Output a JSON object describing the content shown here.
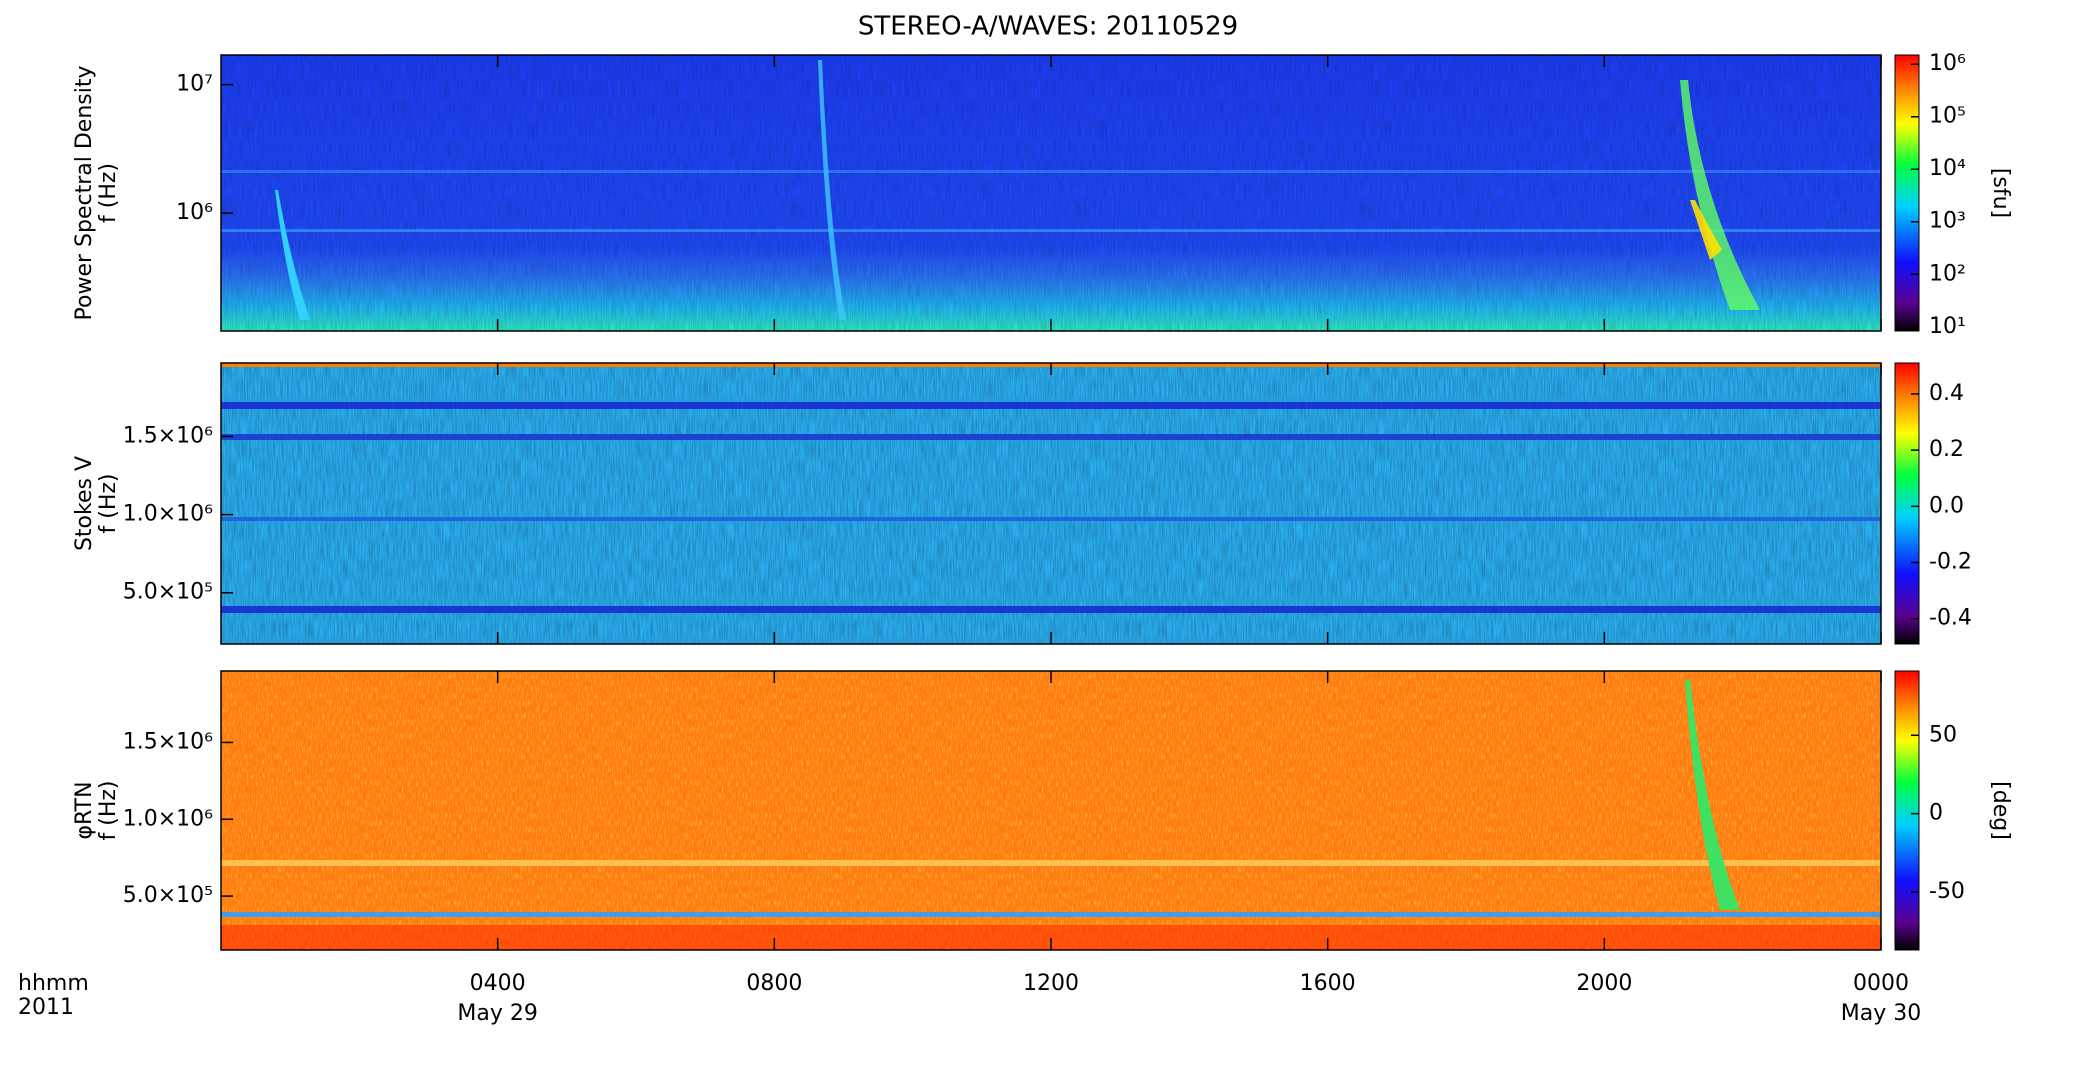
{
  "chart_data": [
    {
      "type": "heatmap",
      "title": "STEREO-A/WAVES: 20110529",
      "ylabel": [
        "Power Spectral Density",
        "f (Hz)"
      ],
      "ylog": true,
      "ylim": [
        121000,
        17000000
      ],
      "yticks": [
        {
          "value": 1000000,
          "label": "10⁶"
        },
        {
          "value": 10000000,
          "label": "10⁷"
        }
      ],
      "colorbar_log": true,
      "clim": [
        8.3,
        1500000
      ],
      "cticks": [
        {
          "value": 10,
          "label": "10¹"
        },
        {
          "value": 100,
          "label": "10²"
        },
        {
          "value": 1000,
          "label": "10³"
        },
        {
          "value": 10000,
          "label": "10⁴"
        },
        {
          "value": 100000,
          "label": "10⁵"
        },
        {
          "value": 1000000,
          "label": "10⁶"
        }
      ],
      "colorbar_label": "[sfu]"
    },
    {
      "type": "heatmap",
      "ylabel": [
        "Stokes V",
        "f (Hz)"
      ],
      "ylog": false,
      "ylim": [
        172000,
        1970000
      ],
      "yticks": [
        {
          "value": 500000,
          "label": "5.0×10⁵"
        },
        {
          "value": 1000000,
          "label": "1.0×10⁶"
        },
        {
          "value": 1500000,
          "label": "1.5×10⁶"
        }
      ],
      "colorbar_log": false,
      "clim": [
        -0.49,
        0.51
      ],
      "cticks": [
        {
          "value": -0.4,
          "label": "-0.4"
        },
        {
          "value": -0.2,
          "label": "-0.2"
        },
        {
          "value": 0,
          "label": "0.0"
        },
        0.2,
        0.4
      ]
    },
    {
      "type": "heatmap",
      "ylabel": [
        "φRTN",
        "f (Hz)"
      ],
      "ylog": false,
      "ylim": [
        149000,
        1965000
      ],
      "yticks": [
        {
          "value": 500000,
          "label": "5.0×10⁵"
        },
        {
          "value": 1000000,
          "label": "1.0×10⁶"
        },
        {
          "value": 1500000,
          "label": "1.5×10⁶"
        }
      ],
      "colorbar_log": false,
      "clim": [
        -87,
        91
      ],
      "cticks": [
        -50,
        0,
        50
      ],
      "colorbar_label": "[deg]",
      "xlim": [
        0,
        24
      ],
      "xticks": [
        {
          "value": 4,
          "label": "0400"
        },
        {
          "value": 8,
          "label": "0800"
        },
        {
          "value": 12,
          "label": "1200"
        },
        {
          "value": 16,
          "label": "1600"
        },
        {
          "value": 20,
          "label": "2000"
        },
        {
          "value": 24,
          "label": "0000"
        }
      ],
      "x_date_labels": [
        {
          "value": 4,
          "label": "May 29"
        },
        {
          "value": 24,
          "label": "May 30"
        }
      ],
      "xlabel": "hhmm",
      "year_label": "2011"
    }
  ]
}
